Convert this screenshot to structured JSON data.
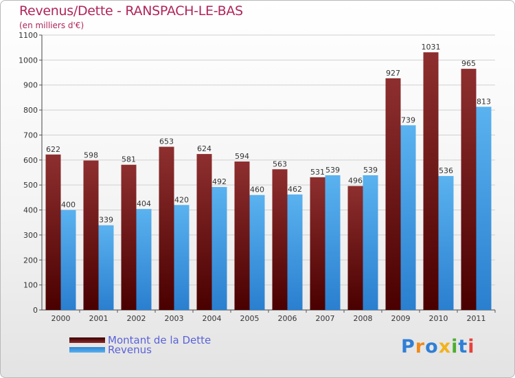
{
  "chart_data": {
    "type": "bar",
    "title": "Revenus/Dette - RANSPACH-LE-BAS",
    "subtitle": "(en milliers d'€)",
    "xlabel": "",
    "ylabel": "",
    "ylim": [
      0,
      1100
    ],
    "y_ticks": [
      0,
      100,
      200,
      300,
      400,
      500,
      600,
      700,
      800,
      900,
      1000,
      1100
    ],
    "grid": true,
    "legend_position": "bottom-left",
    "categories": [
      "2000",
      "2001",
      "2002",
      "2003",
      "2004",
      "2005",
      "2006",
      "2007",
      "2008",
      "2009",
      "2010",
      "2011"
    ],
    "series": [
      {
        "name": "Montant de la Dette",
        "color": "#7b1c1c",
        "values": [
          622,
          598,
          581,
          653,
          624,
          594,
          563,
          531,
          496,
          927,
          1031,
          965
        ]
      },
      {
        "name": "Revenus",
        "color": "#4ea3e6",
        "values": [
          400,
          339,
          404,
          420,
          492,
          460,
          462,
          539,
          539,
          739,
          536,
          813
        ]
      }
    ]
  },
  "brand": {
    "logo_letters": [
      "P",
      "r",
      "o",
      "x",
      "i",
      "t",
      "i"
    ],
    "logo_colors": [
      "#2f7fd6",
      "#f08a18",
      "#2f7fd6",
      "#f2b31b",
      "#4cae2e",
      "#2f7fd6",
      "#e8403a"
    ]
  }
}
